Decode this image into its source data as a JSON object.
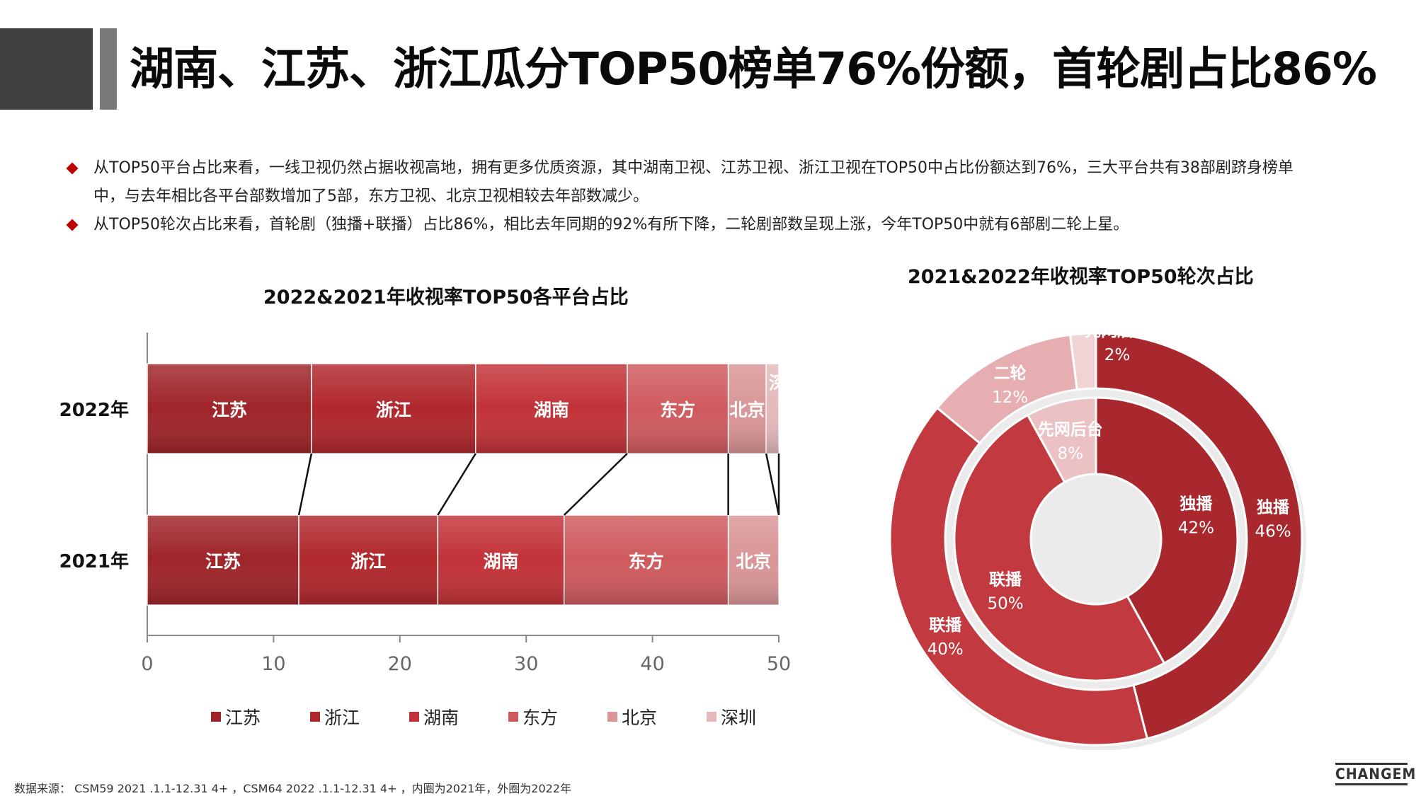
{
  "header": {
    "title": "湖南、江苏、浙江瓜分TOP50榜单76%份额，首轮剧占比86%"
  },
  "bullets": [
    {
      "line1": "从TOP50平台占比来看，一线卫视仍然占据收视高地，拥有更多优质资源，其中湖南卫视、江苏卫视、浙江卫视在TOP50中占比份额达到76%，三大平台共有38部剧跻身榜单",
      "line2": "中，与去年相比各平台部数增加了5部，东方卫视、北京卫视相较去年部数减少。"
    },
    {
      "line1": "从TOP50轮次占比来看，首轮剧（独播+联播）占比86%，相比去年同期的92%有所下降，二轮剧部数呈现上涨，今年TOP50中就有6部剧二轮上星。"
    }
  ],
  "chart_data": [
    {
      "type": "bar",
      "orientation": "horizontal-stacked",
      "title": "2022&2021年收视率TOP50各平台占比",
      "categories": [
        "2022年",
        "2021年"
      ],
      "series": [
        {
          "name": "江苏",
          "values": [
            13,
            12
          ],
          "color": "#9e2428"
        },
        {
          "name": "浙江",
          "values": [
            13,
            11
          ],
          "color": "#b0272c"
        },
        {
          "name": "湖南",
          "values": [
            12,
            10
          ],
          "color": "#c23237"
        },
        {
          "name": "东方",
          "values": [
            8,
            13
          ],
          "color": "#cf5a5e"
        },
        {
          "name": "北京",
          "values": [
            3,
            4
          ],
          "color": "#d99597"
        },
        {
          "name": "深圳",
          "values": [
            1,
            0
          ],
          "color": "#e4b9ba"
        }
      ],
      "segment_labels": [
        [
          "江苏",
          "浙江",
          "湖南",
          "东方",
          "北京",
          "深圳"
        ],
        [
          "江苏",
          "浙江",
          "湖南",
          "东方",
          "北京",
          ""
        ]
      ],
      "xlim": [
        0,
        50
      ],
      "xticks": [
        "0",
        "10",
        "20",
        "30",
        "40",
        "50"
      ],
      "legend": "bottom",
      "grid": false
    },
    {
      "type": "pie",
      "variant": "double-donut",
      "title": "2021&2022年收视率TOP50轮次占比",
      "rings": [
        {
          "name": "2022年",
          "position": "outer",
          "slices": [
            {
              "label": "独播",
              "value": 46,
              "text": "46%",
              "color": "#a8282d"
            },
            {
              "label": "联播",
              "value": 40,
              "text": "40%",
              "color": "#c23a3f"
            },
            {
              "label": "二轮",
              "value": 12,
              "text": "12%",
              "color": "#e6aeb0"
            },
            {
              "label": "先网后台",
              "value": 2,
              "text": "2%",
              "color": "#f2d3d4"
            }
          ]
        },
        {
          "name": "2021年",
          "position": "inner",
          "slices": [
            {
              "label": "独播",
              "value": 42,
              "text": "42%",
              "color": "#a8282d"
            },
            {
              "label": "联播",
              "value": 50,
              "text": "50%",
              "color": "#c23a3f"
            },
            {
              "label": "先网后台",
              "value": 8,
              "text": "8%",
              "color": "#ebc1c3"
            }
          ]
        }
      ]
    }
  ],
  "footer": {
    "source": "数据来源：  CSM59   2021 .1.1-12.31 4+ ，CSM64   2022 .1.1-12.31 4+ ，内圈为2021年，外圈为2022年",
    "logo": "CHANGEMO"
  }
}
